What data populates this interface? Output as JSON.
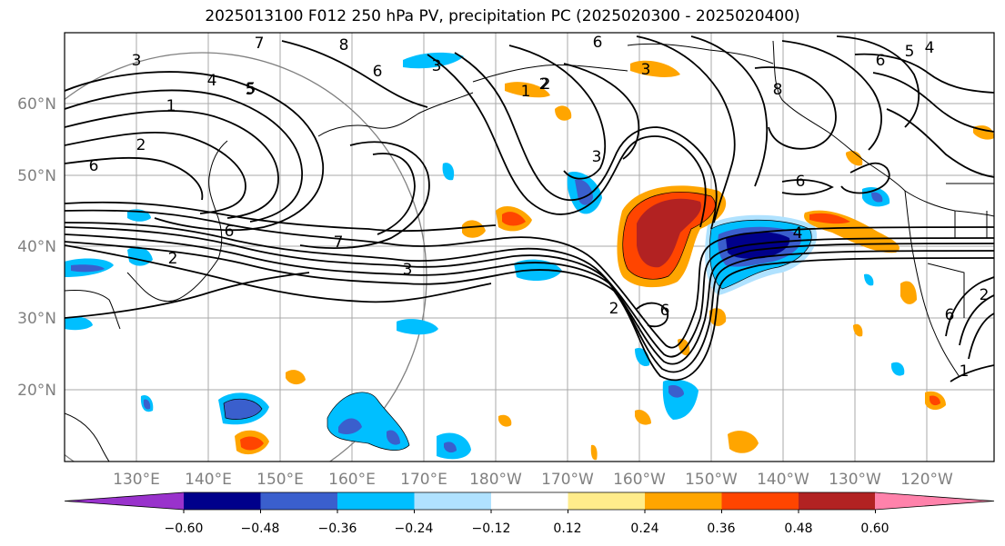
{
  "title": "2025013100 F012 250 hPa PV, precipitation PC (2025020300 - 2025020400)",
  "lat_labels": [
    "60°N",
    "50°N",
    "40°N",
    "30°N",
    "20°N"
  ],
  "lon_labels": [
    "130°E",
    "140°E",
    "150°E",
    "160°E",
    "170°E",
    "180°W",
    "170°W",
    "160°W",
    "150°W",
    "140°W",
    "130°W",
    "120°W"
  ],
  "colorbar": {
    "ticks": [
      "−0.60",
      "−0.48",
      "−0.36",
      "−0.24",
      "−0.12",
      "0.12",
      "0.24",
      "0.36",
      "0.48",
      "0.60"
    ],
    "colors": [
      "#9932cc",
      "#00008b",
      "#3a5fcd",
      "#00bfff",
      "#b0e2ff",
      "#ffffff",
      "#ffec8b",
      "#ffa500",
      "#ff4500",
      "#b22222",
      "#ff82ab"
    ]
  },
  "contour_labels": [
    "3",
    "4",
    "5",
    "7",
    "8",
    "1",
    "2",
    "6",
    "6",
    "3",
    "2",
    "1",
    "7",
    "6",
    "3",
    "6",
    "2",
    "6",
    "8",
    "3",
    "6",
    "5",
    "4",
    "4",
    "6",
    "3",
    "2",
    "1",
    "6",
    "2",
    "5",
    "2"
  ]
}
